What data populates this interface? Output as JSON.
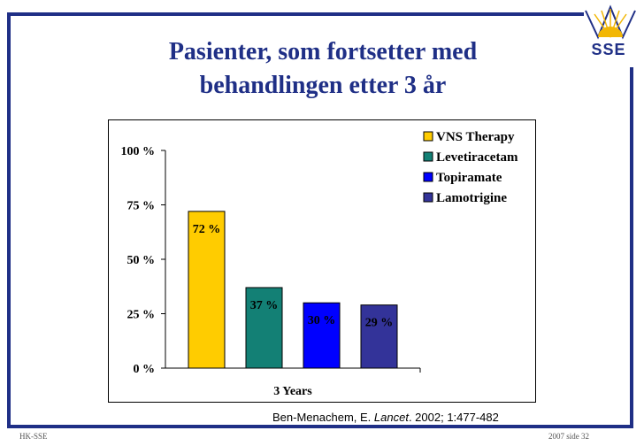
{
  "slide": {
    "title_line1": "Pasienter, som fortsetter med",
    "title_line2": "behandlingen etter 3 år",
    "logo_text": "SSE",
    "source_author": "Ben-Menachem, E.",
    "source_journal": "Lancet",
    "source_rest": ". 2002; 1:477-482",
    "footer_left": "HK-SSE",
    "footer_right": "2007 side 32"
  },
  "colors": {
    "frame": "#1f2f86",
    "title": "#1f2f86",
    "logo_gold": "#f2b705"
  },
  "chart_data": {
    "type": "bar",
    "categories": [
      "3 Years"
    ],
    "xlabel": "3 Years",
    "ylim": [
      0,
      100
    ],
    "yticks": [
      "0 %",
      "25 %",
      "50 %",
      "75 %",
      "100 %"
    ],
    "ytick_values": [
      0,
      25,
      50,
      75,
      100
    ],
    "grid": false,
    "legend_position": "top-right",
    "series": [
      {
        "name": "VNS Therapy",
        "values": [
          72
        ],
        "label": "72 %",
        "color": "#ffcc00"
      },
      {
        "name": "Levetiracetam",
        "values": [
          37
        ],
        "label": "37 %",
        "color": "#138075"
      },
      {
        "name": "Topiramate",
        "values": [
          30
        ],
        "label": "30 %",
        "color": "#0000ff"
      },
      {
        "name": "Lamotrigine",
        "values": [
          29
        ],
        "label": "29 %",
        "color": "#333399"
      }
    ]
  }
}
